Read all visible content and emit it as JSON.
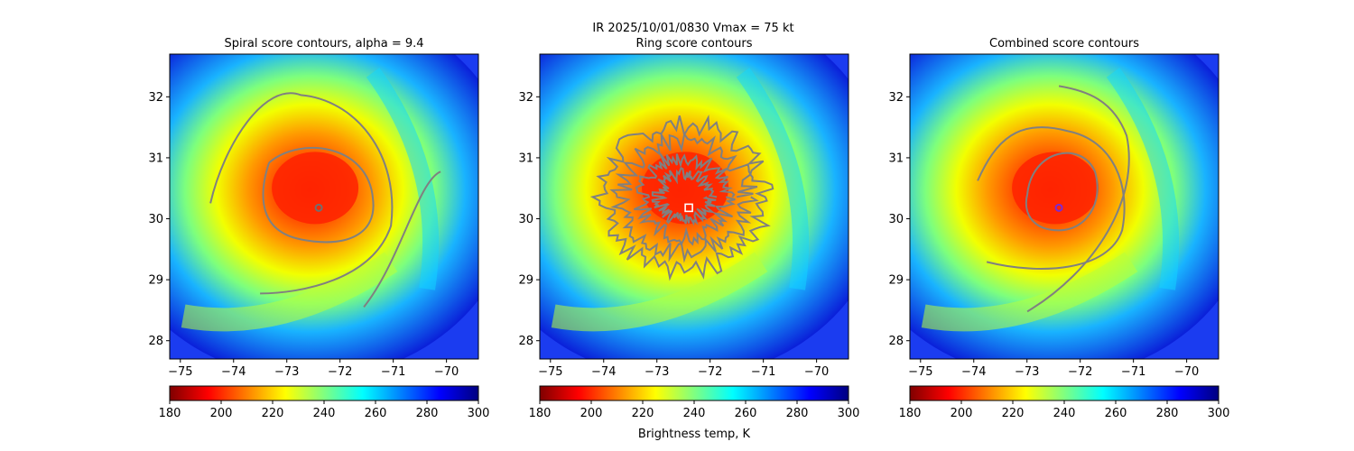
{
  "figure": {
    "suptitle_line1": "IR  2025/10/01/0830    Vmax = 75 kt",
    "colorbar_label": "Brightness temp, K"
  },
  "chart_data": [
    {
      "type": "heatmap",
      "title": "Spiral score contours, alpha =  9.4",
      "xlim": [
        -75.2,
        -69.4
      ],
      "ylim": [
        27.7,
        32.7
      ],
      "xticks": [
        -75,
        -74,
        -73,
        -72,
        -71,
        -70
      ],
      "yticks": [
        28,
        29,
        30,
        31,
        32
      ],
      "xtick_labels": [
        "−75",
        "−74",
        "−73",
        "−72",
        "−71",
        "−70"
      ],
      "ytick_labels": [
        "28",
        "29",
        "30",
        "31",
        "32"
      ],
      "storm_center": [
        -72.4,
        30.18
      ],
      "marker": "small grey ring",
      "contour_color": "#808080"
    },
    {
      "type": "heatmap",
      "title": "Ring score contours",
      "xlim": [
        -75.2,
        -69.4
      ],
      "ylim": [
        27.7,
        32.7
      ],
      "xticks": [
        -75,
        -74,
        -73,
        -72,
        -71,
        -70
      ],
      "yticks": [
        28,
        29,
        30,
        31,
        32
      ],
      "xtick_labels": [
        "−75",
        "−74",
        "−73",
        "−72",
        "−71",
        "−70"
      ],
      "ytick_labels": [
        "28",
        "29",
        "30",
        "31",
        "32"
      ],
      "storm_center": [
        -72.4,
        30.18
      ],
      "marker": "white square",
      "contour_color": "#808080"
    },
    {
      "type": "heatmap",
      "title": "Combined score contours",
      "xlim": [
        -75.2,
        -69.4
      ],
      "ylim": [
        27.7,
        32.7
      ],
      "xticks": [
        -75,
        -74,
        -73,
        -72,
        -71,
        -70
      ],
      "yticks": [
        28,
        29,
        30,
        31,
        32
      ],
      "xtick_labels": [
        "−75",
        "−74",
        "−73",
        "−72",
        "−71",
        "−70"
      ],
      "ytick_labels": [
        "28",
        "29",
        "30",
        "31",
        "32"
      ],
      "storm_center": [
        -72.4,
        30.18
      ],
      "marker": "purple ring",
      "contour_color": "#808080"
    }
  ],
  "colorbar": {
    "colormap": "jet_r",
    "range": [
      180,
      300
    ],
    "ticks": [
      180,
      200,
      220,
      240,
      260,
      280,
      300
    ],
    "tick_labels": [
      "180",
      "200",
      "220",
      "240",
      "260",
      "280",
      "300"
    ],
    "colors": [
      "#800000",
      "#ff0000",
      "#ff8000",
      "#ffff00",
      "#80ff80",
      "#00ffff",
      "#0080ff",
      "#0000ff",
      "#000080"
    ]
  }
}
